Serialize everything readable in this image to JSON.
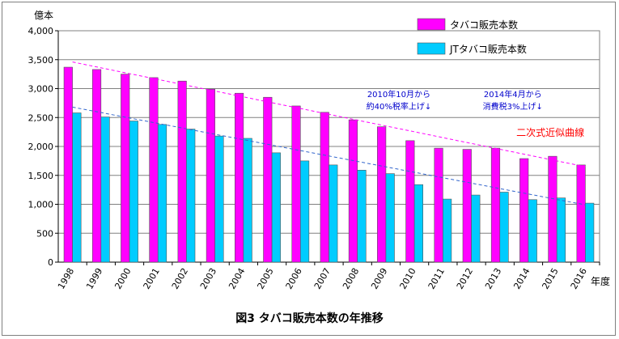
{
  "chart_data": {
    "type": "bar",
    "categories": [
      "1998",
      "1999",
      "2000",
      "2001",
      "2002",
      "2003",
      "2004",
      "2005",
      "2006",
      "2007",
      "2008",
      "2009",
      "2010",
      "2011",
      "2012",
      "2013",
      "2014",
      "2015",
      "2016"
    ],
    "series": [
      {
        "name": "タバコ販売本数",
        "color": "#ff00ff",
        "values": [
          3370,
          3330,
          3250,
          3190,
          3130,
          2990,
          2920,
          2850,
          2700,
          2590,
          2460,
          2340,
          2100,
          1970,
          1950,
          1970,
          1790,
          1830,
          1680
        ]
      },
      {
        "name": "JTタバコ販売本数",
        "color": "#00ccff",
        "values": [
          2580,
          2510,
          2440,
          2380,
          2300,
          2180,
          2140,
          1890,
          1750,
          1680,
          1590,
          1530,
          1340,
          1090,
          1160,
          1210,
          1080,
          1110,
          1020
        ]
      }
    ],
    "trendlines": [
      {
        "series": "タバコ販売本数",
        "color": "#ff00ff",
        "start": 3460,
        "end": 1650
      },
      {
        "series": "JTタバコ販売本数",
        "color": "#3366cc",
        "start": 2680,
        "end": 990
      }
    ],
    "ylabel": "億本",
    "xlabel": "年度",
    "ylim": [
      0,
      4000
    ],
    "yticks": [
      "0",
      "500",
      "1,000",
      "1,500",
      "2,000",
      "2,500",
      "3,000",
      "3,500",
      "4,000"
    ],
    "title": "図3 タバコ販売本数の年推移",
    "grid": true,
    "legend_position": "top-right",
    "annotations": [
      {
        "lines": [
          "2010年10月から",
          "約40%税率上げ↓"
        ],
        "color": "#0000cc",
        "category": "2009"
      },
      {
        "lines": [
          "2014年4月から",
          "消費税3%上げ↓"
        ],
        "color": "#0000cc",
        "category": "2013"
      },
      {
        "lines": [
          "二次式近似曲線"
        ],
        "color": "#ff0000",
        "category": "2015"
      }
    ]
  }
}
